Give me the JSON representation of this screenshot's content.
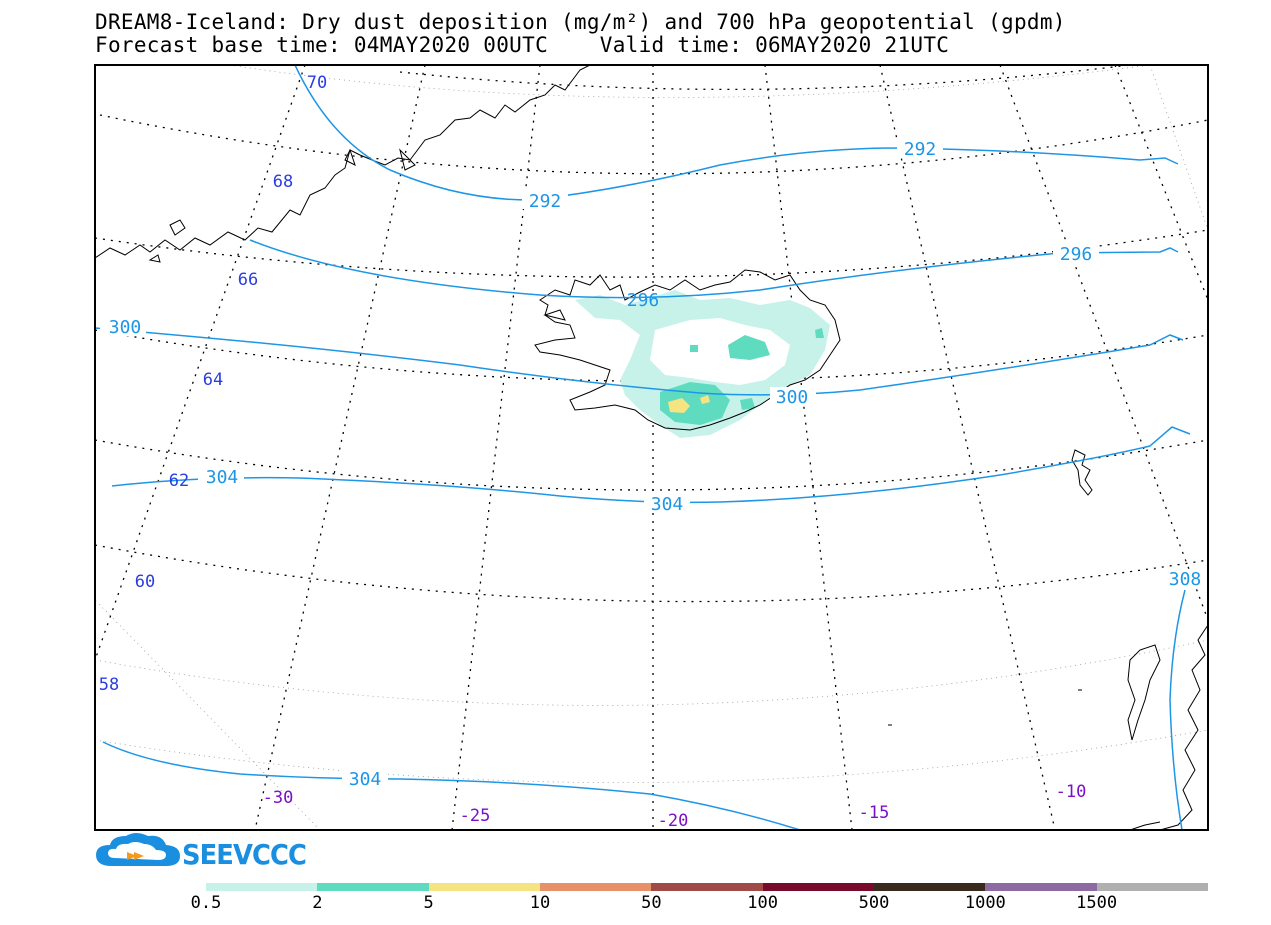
{
  "title": {
    "line1": "DREAM8-Iceland: Dry dust deposition (mg/m²) and 700 hPa geopotential (gpdm)",
    "line2": "Forecast base time: 04MAY2020 00UTC    Valid time: 06MAY2020 21UTC"
  },
  "logo": {
    "text": "SEEVCCC",
    "icon": "cloud-icon"
  },
  "latitude_labels": [
    "70",
    "68",
    "66",
    "64",
    "62",
    "60",
    "58"
  ],
  "longitude_labels": [
    "-30",
    "-25",
    "-20",
    "-15",
    "-10"
  ],
  "contour_labels": {
    "c292a": "292",
    "c292b": "292",
    "c296a": "296",
    "c296b": "296",
    "c300a": "300",
    "c300b": "300",
    "c304a": "304",
    "c304b": "304",
    "c304c": "304",
    "c308": "308"
  },
  "colors": {
    "contour": "#1e96e6",
    "lat_label": "#2a3de0",
    "lon_label": "#7a10c8",
    "dust_low": "#c6f2ea",
    "dust_mid": "#5fdcc0",
    "dust_high": "#f6e482"
  },
  "legend": {
    "labels": [
      "0.5",
      "2",
      "5",
      "10",
      "50",
      "100",
      "500",
      "1000",
      "1500"
    ],
    "colors": [
      "#c6f2ea",
      "#5fdcc0",
      "#f6e482",
      "#e8906a",
      "#a04b48",
      "#7a0a2c",
      "#3a2a1e",
      "#8e6aa2",
      "#b0b0b0"
    ]
  }
}
